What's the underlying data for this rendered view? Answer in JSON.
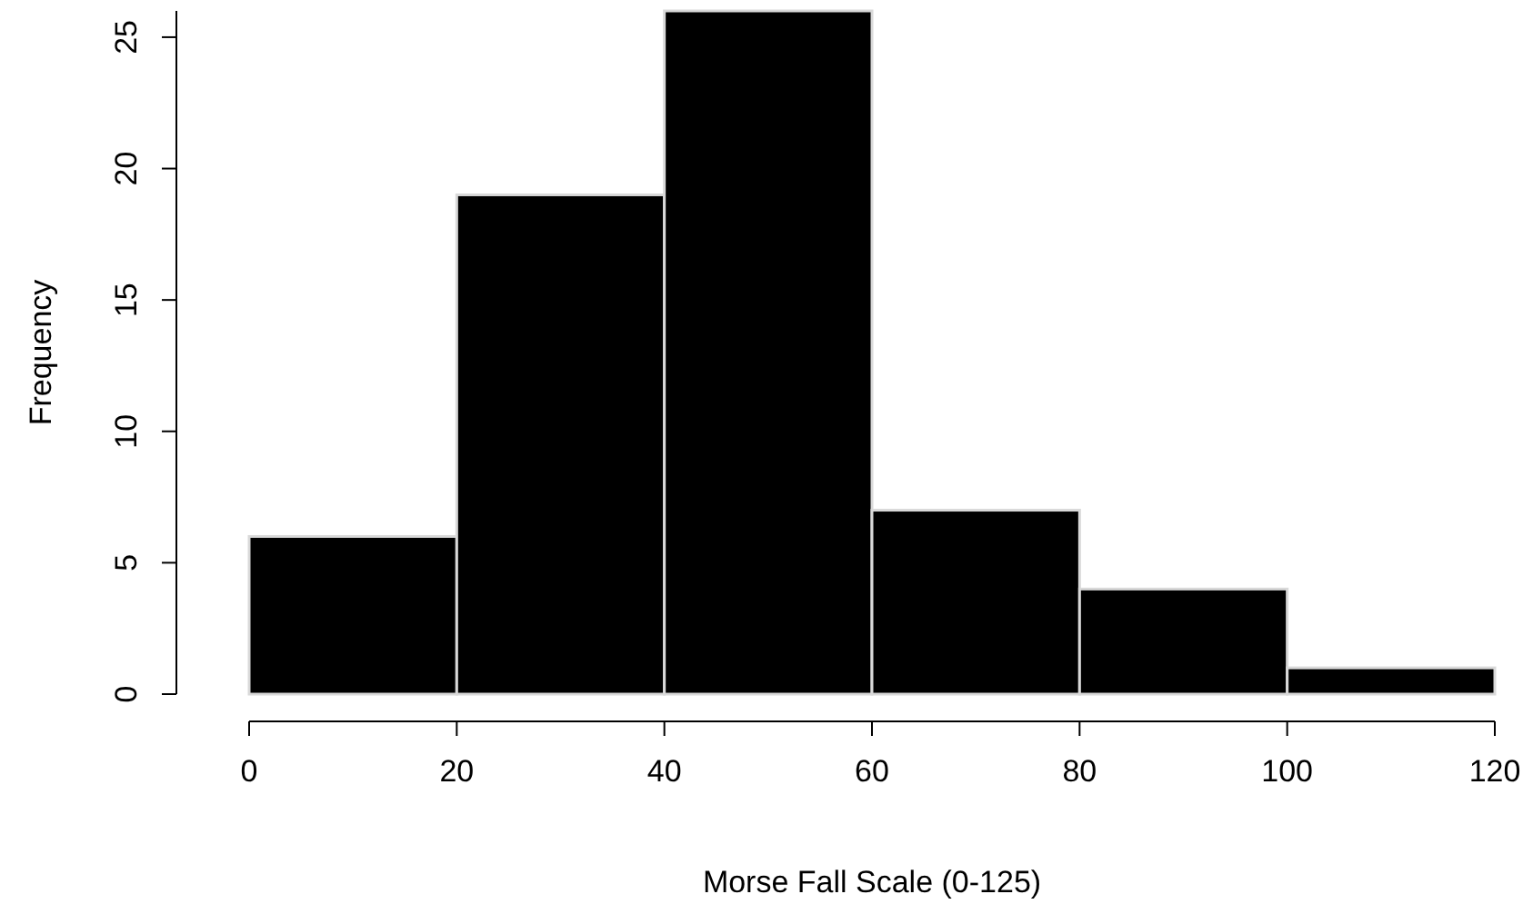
{
  "chart_data": {
    "type": "histogram",
    "xlabel": "Morse Fall Scale (0-125)",
    "ylabel": "Frequency",
    "bins": [
      0,
      20,
      40,
      60,
      80,
      100,
      120
    ],
    "values": [
      6,
      19,
      26,
      7,
      4,
      1
    ],
    "color": "#000000",
    "xlim": [
      0,
      120
    ],
    "xticks": [
      0,
      20,
      40,
      60,
      80,
      100,
      120
    ],
    "ylim": [
      0,
      26
    ],
    "yticks": [
      0,
      5,
      10,
      15,
      20,
      25
    ]
  }
}
